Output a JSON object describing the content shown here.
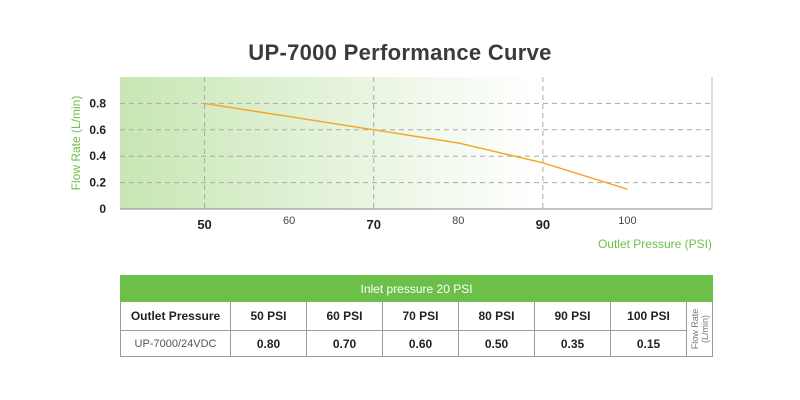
{
  "chart_data": {
    "type": "line",
    "title": "UP-7000 Performance Curve",
    "xlabel": "Outlet Pressure (PSI)",
    "ylabel": "Flow Rate (L/min)",
    "xlim": [
      40,
      110
    ],
    "ylim": [
      0,
      1
    ],
    "x_ticks": [
      50,
      60,
      70,
      80,
      90,
      100
    ],
    "x_ticks_bold": [
      50,
      70,
      90
    ],
    "y_ticks": [
      "0",
      "0.2",
      "0.4",
      "0.6",
      "0.8"
    ],
    "grid": "dashed at 50, 70, 90 PSI and 0.2 to 0.8 L/min",
    "series": [
      {
        "x": [
          50,
          60,
          70,
          80,
          90,
          100
        ],
        "y": [
          0.8,
          0.7,
          0.6,
          0.5,
          0.35,
          0.15
        ]
      }
    ],
    "colors": {
      "line": "#f5a623",
      "gradient_start": "#c8e6b4",
      "accent_green": "#6cc04a"
    }
  },
  "table": {
    "header": "Inlet pressure 20 PSI",
    "row_header_label": "Outlet Pressure",
    "columns": [
      "50 PSI",
      "60 PSI",
      "70 PSI",
      "80 PSI",
      "90 PSI",
      "100 PSI"
    ],
    "model": "UP-7000/24VDC",
    "values": [
      "0.80",
      "0.70",
      "0.60",
      "0.50",
      "0.35",
      "0.15"
    ],
    "unit_label_line1": "Flow Rate",
    "unit_label_line2": "(L/min)"
  }
}
